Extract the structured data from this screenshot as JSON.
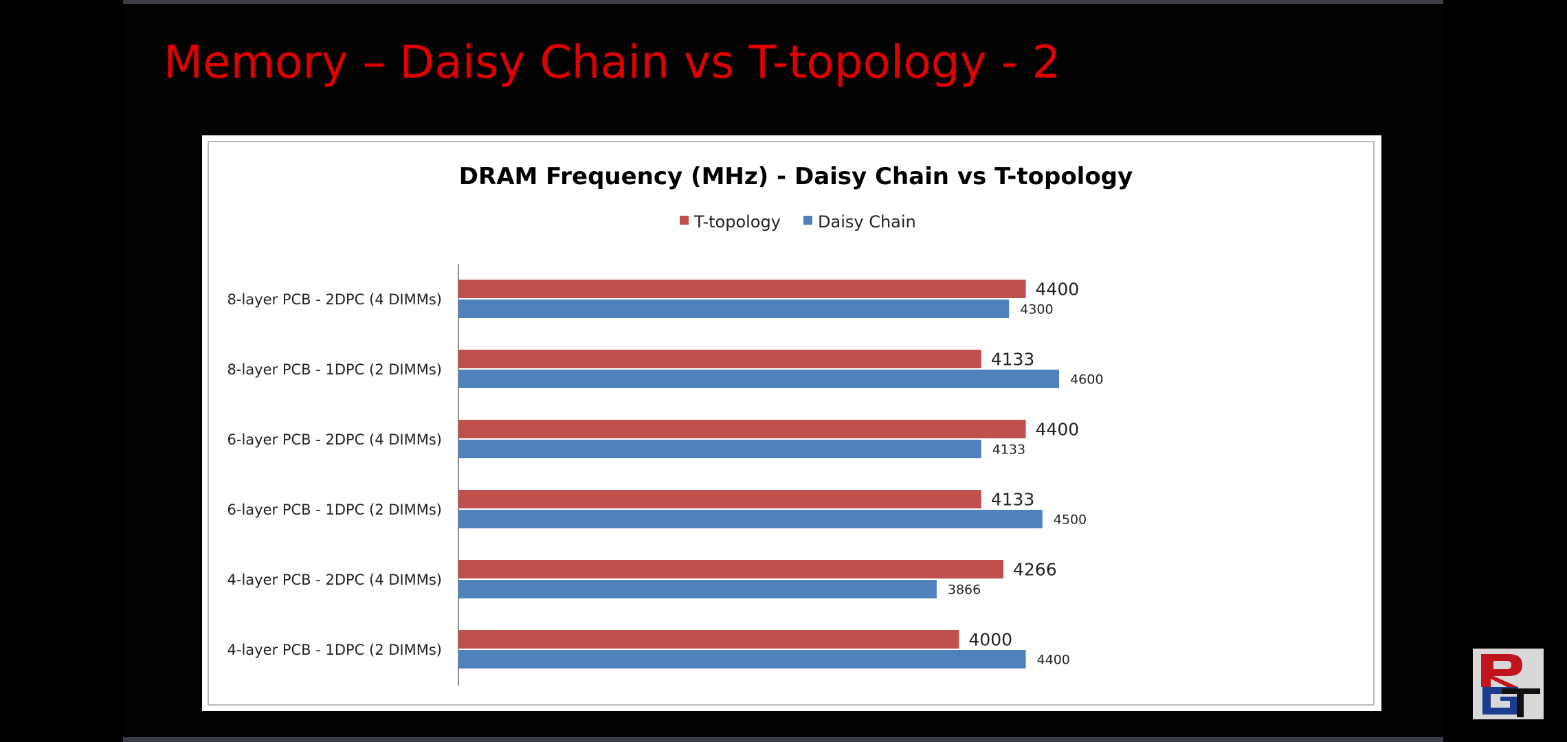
{
  "slide": {
    "title": "Memory – Daisy Chain vs T-topology - 2"
  },
  "chart_data": {
    "type": "bar",
    "orientation": "horizontal",
    "title": "DRAM Frequency (MHz) - Daisy Chain vs T-topology",
    "legend_position": "top",
    "categories": [
      "8-layer PCB - 2DPC (4 DIMMs)",
      "8-layer PCB - 1DPC (2 DIMMs)",
      "6-layer PCB - 2DPC (4 DIMMs)",
      "6-layer PCB - 1DPC (2 DIMMs)",
      "4-layer PCB - 2DPC (4 DIMMs)",
      "4-layer PCB - 1DPC (2 DIMMs)"
    ],
    "series": [
      {
        "name": "T-topology",
        "color": "#c0504d",
        "values": [
          4400,
          4133,
          4400,
          4133,
          4266,
          4000
        ]
      },
      {
        "name": "Daisy Chain",
        "color": "#4f81bd",
        "values": [
          4300,
          4600,
          4133,
          4500,
          3866,
          4400
        ]
      }
    ],
    "xlim": [
      1000,
      5600
    ],
    "xlabel": "",
    "ylabel": "",
    "grid": false
  },
  "logo": {
    "text": "RGT",
    "colors": {
      "r": "#c0151c",
      "g": "#1c3c8f",
      "t": "#111111"
    }
  }
}
